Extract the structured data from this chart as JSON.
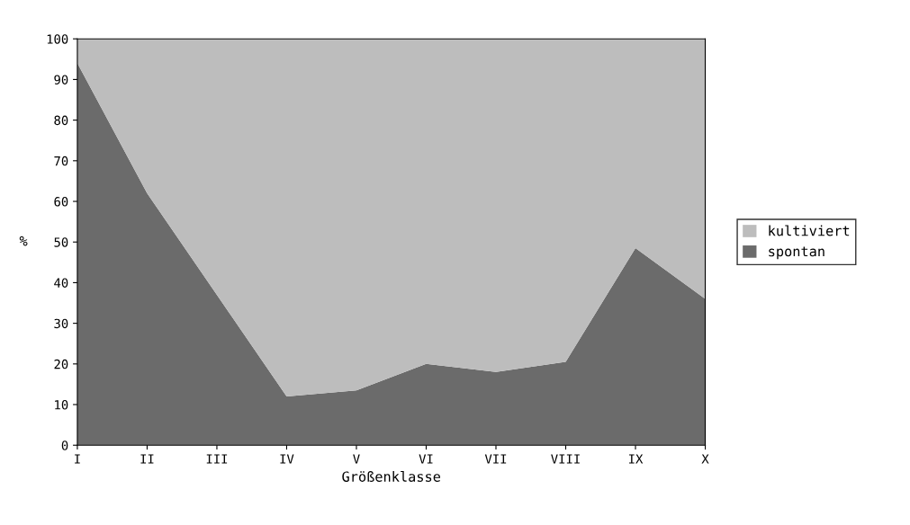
{
  "chart_data": {
    "type": "area",
    "stacked": true,
    "xlabel": "Größenklasse",
    "ylabel": "%",
    "categories": [
      "I",
      "II",
      "III",
      "IV",
      "V",
      "VI",
      "VII",
      "VIII",
      "IX",
      "X"
    ],
    "series": [
      {
        "name": "spontan",
        "color": "#6b6b6b",
        "values": [
          94,
          62,
          37,
          12,
          13.5,
          20,
          18,
          20.5,
          48.5,
          36
        ]
      },
      {
        "name": "kultiviert",
        "color": "#bdbdbd",
        "values": [
          6,
          38,
          63,
          88,
          86.5,
          80,
          82,
          79.5,
          51.5,
          64
        ]
      }
    ],
    "ylim": [
      0,
      100
    ],
    "yticks": [
      0,
      10,
      20,
      30,
      40,
      50,
      60,
      70,
      80,
      90,
      100
    ],
    "grid": false,
    "legend": "right"
  }
}
